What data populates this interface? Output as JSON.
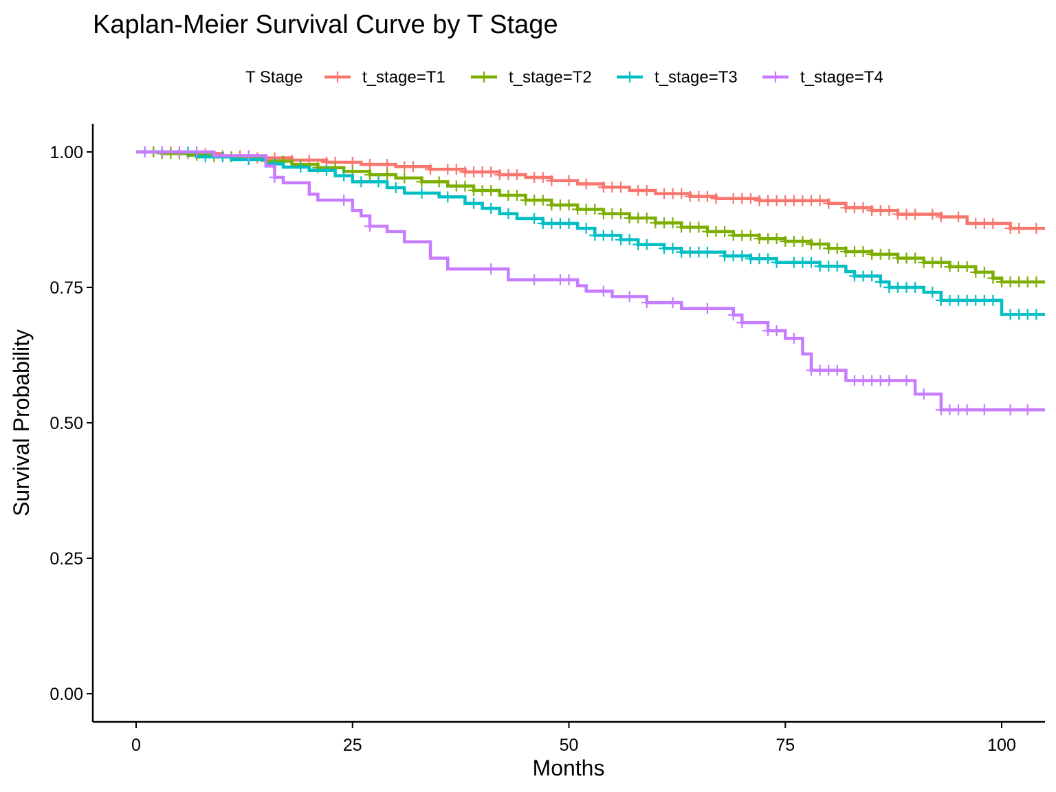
{
  "chart_data": {
    "type": "line",
    "title": "Kaplan-Meier Survival Curve by T Stage",
    "xlabel": "Months",
    "ylabel": "Survival Probability",
    "legend_title": "T Stage",
    "legend_position": "top",
    "grid": false,
    "xlim": [
      -5,
      105
    ],
    "ylim": [
      -0.05,
      1.05
    ],
    "xticks": [
      0,
      25,
      50,
      75,
      100
    ],
    "xtick_labels": [
      "0",
      "25",
      "50",
      "75",
      "100"
    ],
    "yticks": [
      0,
      0.25,
      0.5,
      0.75,
      1.0
    ],
    "ytick_labels": [
      "0.00",
      "0.25",
      "0.50",
      "0.75",
      "1.00"
    ],
    "series": [
      {
        "name": "t_stage=T1",
        "color": "#F8766D",
        "steps": [
          [
            0,
            1.0
          ],
          [
            5,
            0.997
          ],
          [
            10,
            0.993
          ],
          [
            14,
            0.989
          ],
          [
            18,
            0.985
          ],
          [
            22,
            0.981
          ],
          [
            26,
            0.977
          ],
          [
            30,
            0.973
          ],
          [
            34,
            0.968
          ],
          [
            38,
            0.963
          ],
          [
            42,
            0.958
          ],
          [
            45,
            0.953
          ],
          [
            48,
            0.947
          ],
          [
            51,
            0.941
          ],
          [
            54,
            0.935
          ],
          [
            57,
            0.929
          ],
          [
            60,
            0.923
          ],
          [
            64,
            0.918
          ],
          [
            67,
            0.914
          ],
          [
            72,
            0.91
          ],
          [
            80,
            0.905
          ],
          [
            82,
            0.897
          ],
          [
            85,
            0.892
          ],
          [
            88,
            0.885
          ],
          [
            93,
            0.88
          ],
          [
            96,
            0.868
          ],
          [
            101,
            0.859
          ],
          [
            105,
            0.859
          ]
        ],
        "censors": [
          1,
          2,
          4,
          6,
          8,
          10,
          12,
          14,
          16,
          18,
          20,
          22,
          23,
          25,
          27,
          29,
          31,
          32,
          34,
          36,
          37,
          38,
          39,
          40,
          41,
          42,
          43,
          44,
          46,
          47,
          48,
          50,
          52,
          54,
          55,
          56,
          58,
          59,
          61,
          62,
          63,
          64,
          65,
          66,
          67,
          69,
          70,
          71,
          72,
          73,
          74,
          75,
          76,
          77,
          78,
          79,
          80,
          82,
          83,
          84,
          85,
          86,
          87,
          88,
          89,
          90,
          92,
          93,
          95,
          97,
          98,
          99,
          101,
          102,
          104
        ]
      },
      {
        "name": "t_stage=T2",
        "color": "#7CAE00",
        "steps": [
          [
            0,
            1.0
          ],
          [
            3,
            0.997
          ],
          [
            6,
            0.994
          ],
          [
            9,
            0.991
          ],
          [
            12,
            0.987
          ],
          [
            15,
            0.983
          ],
          [
            18,
            0.977
          ],
          [
            21,
            0.971
          ],
          [
            24,
            0.964
          ],
          [
            27,
            0.958
          ],
          [
            30,
            0.952
          ],
          [
            33,
            0.945
          ],
          [
            36,
            0.937
          ],
          [
            39,
            0.929
          ],
          [
            42,
            0.92
          ],
          [
            45,
            0.911
          ],
          [
            48,
            0.902
          ],
          [
            51,
            0.894
          ],
          [
            54,
            0.886
          ],
          [
            57,
            0.878
          ],
          [
            60,
            0.869
          ],
          [
            63,
            0.861
          ],
          [
            66,
            0.853
          ],
          [
            69,
            0.846
          ],
          [
            72,
            0.84
          ],
          [
            75,
            0.835
          ],
          [
            78,
            0.83
          ],
          [
            80,
            0.822
          ],
          [
            82,
            0.816
          ],
          [
            85,
            0.811
          ],
          [
            88,
            0.804
          ],
          [
            91,
            0.796
          ],
          [
            94,
            0.788
          ],
          [
            97,
            0.778
          ],
          [
            99,
            0.767
          ],
          [
            100,
            0.76
          ],
          [
            105,
            0.76
          ]
        ],
        "censors": [
          1,
          2,
          3,
          4,
          5,
          7,
          9,
          11,
          13,
          15,
          17,
          19,
          21,
          23,
          25,
          27,
          29,
          31,
          33,
          35,
          37,
          38,
          39,
          40,
          41,
          43,
          44,
          45,
          46,
          47,
          48,
          49,
          50,
          51,
          52,
          53,
          54,
          55,
          56,
          57,
          58,
          59,
          60,
          61,
          62,
          63,
          64,
          65,
          66,
          67,
          68,
          69,
          70,
          71,
          72,
          73,
          74,
          75,
          76,
          77,
          78,
          79,
          80,
          81,
          82,
          83,
          84,
          85,
          86,
          87,
          88,
          89,
          90,
          91,
          92,
          93,
          94,
          95,
          96,
          97,
          98,
          99,
          100,
          101,
          102,
          103,
          104
        ]
      },
      {
        "name": "t_stage=T3",
        "color": "#00BFC4",
        "steps": [
          [
            0,
            1.0
          ],
          [
            7,
            0.991
          ],
          [
            11,
            0.986
          ],
          [
            15,
            0.978
          ],
          [
            17,
            0.972
          ],
          [
            20,
            0.966
          ],
          [
            23,
            0.956
          ],
          [
            25,
            0.945
          ],
          [
            29,
            0.934
          ],
          [
            31,
            0.924
          ],
          [
            35,
            0.917
          ],
          [
            38,
            0.905
          ],
          [
            40,
            0.896
          ],
          [
            42,
            0.886
          ],
          [
            44,
            0.877
          ],
          [
            47,
            0.868
          ],
          [
            51,
            0.859
          ],
          [
            53,
            0.846
          ],
          [
            56,
            0.838
          ],
          [
            58,
            0.829
          ],
          [
            61,
            0.822
          ],
          [
            63,
            0.815
          ],
          [
            68,
            0.808
          ],
          [
            71,
            0.803
          ],
          [
            74,
            0.796
          ],
          [
            79,
            0.789
          ],
          [
            82,
            0.779
          ],
          [
            83,
            0.771
          ],
          [
            86,
            0.76
          ],
          [
            87,
            0.75
          ],
          [
            91,
            0.741
          ],
          [
            93,
            0.726
          ],
          [
            100,
            0.7
          ],
          [
            105,
            0.7
          ]
        ],
        "censors": [
          1,
          3,
          6,
          8,
          10,
          13,
          16,
          19,
          22,
          24,
          26,
          28,
          30,
          33,
          36,
          39,
          41,
          43,
          46,
          47,
          48,
          49,
          50,
          52,
          53,
          54,
          55,
          56,
          57,
          58,
          59,
          61,
          62,
          63,
          64,
          65,
          66,
          68,
          69,
          70,
          71,
          72,
          73,
          74,
          76,
          77,
          78,
          79,
          80,
          81,
          83,
          84,
          85,
          86,
          87,
          88,
          89,
          90,
          92,
          93,
          94,
          95,
          96,
          97,
          98,
          99,
          101,
          102,
          103,
          104
        ]
      },
      {
        "name": "t_stage=T4",
        "color": "#C77CFF",
        "steps": [
          [
            0,
            1.0
          ],
          [
            9,
            0.993
          ],
          [
            15,
            0.974
          ],
          [
            16,
            0.953
          ],
          [
            17,
            0.943
          ],
          [
            20,
            0.922
          ],
          [
            21,
            0.911
          ],
          [
            25,
            0.892
          ],
          [
            26,
            0.882
          ],
          [
            27,
            0.863
          ],
          [
            29,
            0.853
          ],
          [
            31,
            0.834
          ],
          [
            34,
            0.804
          ],
          [
            36,
            0.784
          ],
          [
            43,
            0.764
          ],
          [
            51,
            0.753
          ],
          [
            52,
            0.743
          ],
          [
            55,
            0.733
          ],
          [
            59,
            0.722
          ],
          [
            63,
            0.711
          ],
          [
            69,
            0.699
          ],
          [
            70,
            0.685
          ],
          [
            73,
            0.67
          ],
          [
            75,
            0.656
          ],
          [
            77,
            0.627
          ],
          [
            78,
            0.597
          ],
          [
            82,
            0.578
          ],
          [
            90,
            0.553
          ],
          [
            93,
            0.524
          ],
          [
            105,
            0.524
          ]
        ],
        "censors": [
          1,
          3,
          5,
          7,
          13,
          16,
          24,
          27,
          41,
          46,
          49,
          50,
          54,
          57,
          59,
          62,
          66,
          69,
          70,
          73,
          74,
          76,
          78,
          79,
          80,
          81,
          83,
          84,
          85,
          86,
          87,
          89,
          91,
          93,
          94,
          95,
          96,
          98,
          101,
          103
        ]
      }
    ]
  }
}
